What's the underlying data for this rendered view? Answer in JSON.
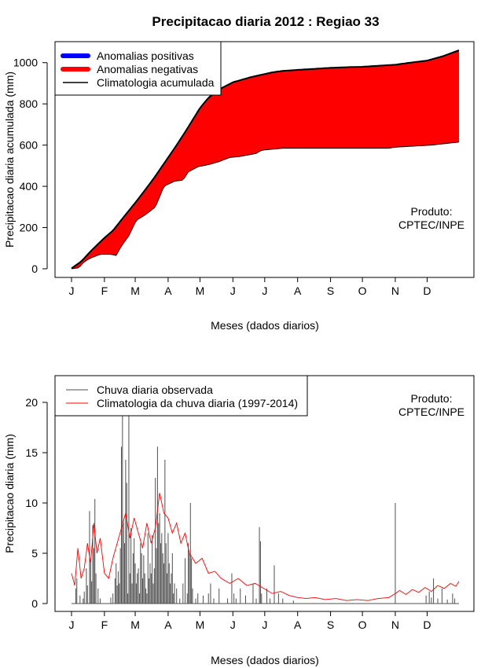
{
  "title": "Precipitacao diaria 2012 : Regiao 33",
  "colors": {
    "positive": "#0000ff",
    "negative": "#ff0000",
    "climatology": "#000000",
    "observed": "#505050",
    "clim_daily": "#ff0000"
  },
  "chart_data": [
    {
      "type": "area",
      "ylabel": "Precipitacao diaria acumulada (mm)",
      "xlabel": "Meses (dados diarios)",
      "ylim": [
        0,
        1060
      ],
      "yticks": [
        0,
        200,
        400,
        600,
        800,
        1000
      ],
      "month_labels": [
        "J",
        "F",
        "M",
        "A",
        "M",
        "J",
        "J",
        "A",
        "S",
        "O",
        "N",
        "D"
      ],
      "month_start_days": [
        1,
        32,
        61,
        92,
        122,
        153,
        183,
        214,
        245,
        275,
        306,
        336
      ],
      "legend": [
        "Anomalias positivas",
        "Anomalias negativas",
        "Climatologia acumulada"
      ],
      "watermark": [
        "Produto:",
        "CPTEC/INPE"
      ],
      "climatology_accumulated": {
        "day": [
          1,
          10,
          20,
          32,
          40,
          50,
          61,
          70,
          80,
          92,
          100,
          110,
          122,
          130,
          140,
          153,
          160,
          170,
          183,
          190,
          200,
          214,
          230,
          245,
          260,
          275,
          290,
          306,
          320,
          336,
          350,
          366
        ],
        "value": [
          2,
          35,
          90,
          150,
          185,
          250,
          320,
          380,
          450,
          540,
          600,
          680,
          780,
          830,
          870,
          905,
          915,
          930,
          945,
          953,
          960,
          965,
          970,
          975,
          978,
          980,
          985,
          990,
          1000,
          1010,
          1030,
          1060
        ]
      },
      "observed_accumulated": {
        "day": [
          1,
          8,
          12,
          18,
          28,
          32,
          38,
          43,
          48,
          55,
          62,
          70,
          80,
          88,
          94,
          98,
          106,
          111,
          120,
          130,
          140,
          150,
          160,
          175,
          180,
          200,
          230,
          260,
          300,
          306,
          340,
          366
        ],
        "value": [
          0,
          5,
          30,
          50,
          70,
          70,
          70,
          65,
          110,
          160,
          235,
          260,
          300,
          400,
          415,
          425,
          430,
          470,
          495,
          505,
          520,
          540,
          545,
          560,
          575,
          585,
          585,
          585,
          585,
          590,
          600,
          615
        ]
      }
    },
    {
      "type": "bar",
      "ylabel": "Precipitacao diaria (mm)",
      "xlabel": "Meses (dados diarios)",
      "ylim": [
        0,
        22
      ],
      "yticks": [
        0,
        5,
        10,
        15,
        20
      ],
      "month_labels": [
        "J",
        "F",
        "M",
        "A",
        "M",
        "J",
        "J",
        "A",
        "S",
        "O",
        "N",
        "D"
      ],
      "month_start_days": [
        1,
        32,
        61,
        92,
        122,
        153,
        183,
        214,
        245,
        275,
        306,
        336
      ],
      "legend": [
        "Chuva diaria observada",
        "Climatologia da chuva diaria (1997-2014)"
      ],
      "watermark": [
        "Produto:",
        "CPTEC/INPE"
      ],
      "observed_daily": [
        [
          5,
          1.5
        ],
        [
          6,
          2.5
        ],
        [
          9,
          0.8
        ],
        [
          12,
          0.5
        ],
        [
          13,
          1.2
        ],
        [
          15,
          3.5
        ],
        [
          16,
          1.8
        ],
        [
          18,
          9.2
        ],
        [
          19,
          4.0
        ],
        [
          20,
          2.2
        ],
        [
          21,
          7.8
        ],
        [
          22,
          5.5
        ],
        [
          23,
          10.4
        ],
        [
          24,
          3.0
        ],
        [
          26,
          1.5
        ],
        [
          28,
          0.5
        ],
        [
          38,
          0.6
        ],
        [
          40,
          1.0
        ],
        [
          42,
          2.5
        ],
        [
          43,
          4.0
        ],
        [
          44,
          1.8
        ],
        [
          45,
          3.2
        ],
        [
          46,
          2.0
        ],
        [
          47,
          5.5
        ],
        [
          48,
          15.6
        ],
        [
          49,
          19.0
        ],
        [
          50,
          8.0
        ],
        [
          51,
          6.0
        ],
        [
          52,
          14.3
        ],
        [
          53,
          12.0
        ],
        [
          54,
          1.0
        ],
        [
          55,
          19.0
        ],
        [
          56,
          3.0
        ],
        [
          57,
          7.5
        ],
        [
          58,
          2.0
        ],
        [
          59,
          5.0
        ],
        [
          60,
          6.5
        ],
        [
          61,
          4.0
        ],
        [
          62,
          2.0
        ],
        [
          63,
          3.0
        ],
        [
          64,
          3.5
        ],
        [
          65,
          1.0
        ],
        [
          66,
          6.0
        ],
        [
          67,
          5.0
        ],
        [
          68,
          2.5
        ],
        [
          69,
          4.8
        ],
        [
          70,
          3.0
        ],
        [
          71,
          1.5
        ],
        [
          72,
          1.0
        ],
        [
          73,
          7.0
        ],
        [
          74,
          2.5
        ],
        [
          75,
          4.0
        ],
        [
          76,
          3.0
        ],
        [
          77,
          6.8
        ],
        [
          78,
          2.0
        ],
        [
          79,
          3.5
        ],
        [
          80,
          12.5
        ],
        [
          81,
          5.5
        ],
        [
          82,
          15.6
        ],
        [
          83,
          8.0
        ],
        [
          84,
          9.0
        ],
        [
          85,
          6.0
        ],
        [
          86,
          7.0
        ],
        [
          87,
          5.0
        ],
        [
          88,
          4.0
        ],
        [
          89,
          14.3
        ],
        [
          90,
          6.0
        ],
        [
          91,
          3.0
        ],
        [
          92,
          7.0
        ],
        [
          93,
          4.0
        ],
        [
          94,
          2.0
        ],
        [
          95,
          3.0
        ],
        [
          96,
          5.0
        ],
        [
          97,
          1.0
        ],
        [
          98,
          2.0
        ],
        [
          100,
          1.5
        ],
        [
          103,
          0.5
        ],
        [
          106,
          2.0
        ],
        [
          108,
          4.5
        ],
        [
          110,
          1.0
        ],
        [
          111,
          6.0
        ],
        [
          112,
          5.0
        ],
        [
          113,
          10.0
        ],
        [
          114,
          4.5
        ],
        [
          115,
          1.5
        ],
        [
          118,
          0.5
        ],
        [
          120,
          1.0
        ],
        [
          125,
          0.8
        ],
        [
          130,
          1.0
        ],
        [
          132,
          2.0
        ],
        [
          135,
          0.5
        ],
        [
          140,
          1.5
        ],
        [
          148,
          0.5
        ],
        [
          152,
          3.0
        ],
        [
          154,
          1.0
        ],
        [
          156,
          0.5
        ],
        [
          160,
          1.5
        ],
        [
          165,
          0.8
        ],
        [
          172,
          2.0
        ],
        [
          175,
          0.5
        ],
        [
          178,
          7.6
        ],
        [
          179,
          6.2
        ],
        [
          180,
          1.0
        ],
        [
          185,
          1.5
        ],
        [
          188,
          0.5
        ],
        [
          192,
          3.8
        ],
        [
          196,
          1.0
        ],
        [
          200,
          0.5
        ],
        [
          210,
          0.3
        ],
        [
          306,
          10.0
        ],
        [
          335,
          0.8
        ],
        [
          338,
          1.2
        ],
        [
          340,
          0.6
        ],
        [
          342,
          2.5
        ],
        [
          346,
          0.5
        ],
        [
          350,
          1.5
        ],
        [
          355,
          0.4
        ],
        [
          360,
          1.0
        ],
        [
          362,
          0.5
        ]
      ],
      "climatology_daily": {
        "day": [
          1,
          4,
          7,
          10,
          13,
          16,
          19,
          22,
          25,
          28,
          32,
          36,
          40,
          44,
          48,
          52,
          56,
          60,
          64,
          68,
          72,
          76,
          80,
          84,
          88,
          92,
          96,
          100,
          104,
          108,
          112,
          118,
          124,
          130,
          136,
          142,
          150,
          158,
          166,
          174,
          182,
          190,
          198,
          206,
          214,
          222,
          230,
          240,
          250,
          260,
          270,
          280,
          290,
          300,
          306,
          310,
          316,
          322,
          328,
          334,
          340,
          346,
          352,
          358,
          363,
          366
        ],
        "value": [
          3.0,
          1.8,
          5.5,
          2.5,
          3.5,
          6.0,
          4.0,
          8.0,
          5.0,
          6.5,
          3.0,
          2.5,
          4.5,
          6.0,
          7.5,
          9.0,
          6.5,
          8.5,
          7.0,
          5.5,
          8.0,
          6.0,
          7.5,
          11.0,
          9.0,
          8.5,
          7.0,
          8.0,
          6.0,
          7.0,
          5.0,
          4.0,
          4.5,
          3.0,
          3.2,
          2.5,
          2.0,
          2.5,
          1.8,
          2.0,
          1.5,
          1.0,
          1.2,
          0.8,
          0.6,
          0.5,
          0.6,
          0.4,
          0.5,
          0.3,
          0.4,
          0.3,
          0.5,
          0.6,
          1.0,
          1.3,
          0.9,
          1.4,
          1.1,
          1.6,
          1.2,
          1.8,
          1.5,
          2.0,
          1.7,
          2.2
        ]
      }
    }
  ]
}
